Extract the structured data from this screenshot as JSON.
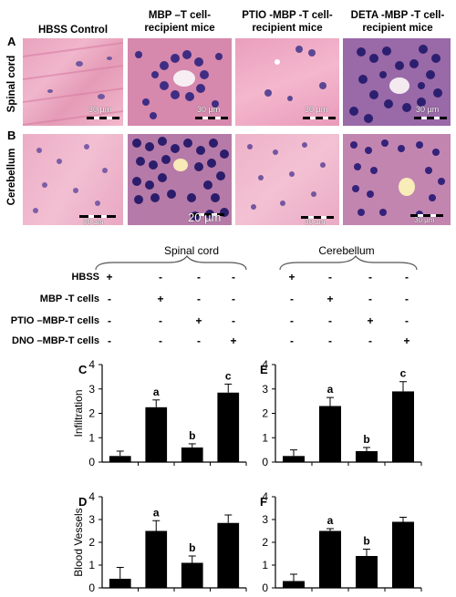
{
  "columns": [
    "HBSS Control",
    "MBP –T cell-\nrecipient mice",
    "PTIO -MBP -T cell-\nrecipient mice",
    "DETA -MBP -T cell-\nrecipient mice"
  ],
  "rows": [
    {
      "letter": "A",
      "label": "Spinal cord"
    },
    {
      "letter": "B",
      "label": "Cerebellum"
    }
  ],
  "scale_labels": {
    "A": [
      "30 µm",
      "30 µm",
      "30 µm",
      "30 µm"
    ],
    "B": [
      "30 µm",
      "20 µm",
      "30 µm",
      "30 µm"
    ]
  },
  "treatment_groups": [
    "Spinal cord",
    "Cerebellum"
  ],
  "treatments": [
    {
      "label": "HBSS",
      "values": [
        "+",
        "-",
        "-",
        "-"
      ]
    },
    {
      "label": "MBP -T cells",
      "values": [
        "-",
        "+",
        "-",
        "-"
      ]
    },
    {
      "label": "PTIO –MBP-T cells",
      "values": [
        "-",
        "-",
        "+",
        "-"
      ]
    },
    {
      "label": "DNO –MBP-T cells",
      "values": [
        "-",
        "-",
        "-",
        "+"
      ]
    }
  ],
  "colors": {
    "he_pink": "#e7a7bd",
    "he_nuclei": "#3b2f7a",
    "bar": "#000000"
  },
  "chart_data": [
    {
      "panel": "C",
      "type": "bar",
      "ylabel": "Infiltration",
      "ylim": [
        0,
        4
      ],
      "yticks": [
        0,
        1,
        2,
        3,
        4
      ],
      "values": [
        0.25,
        2.25,
        0.6,
        2.85
      ],
      "errors": [
        0.2,
        0.3,
        0.15,
        0.35
      ],
      "annotations": [
        "",
        "a",
        "b",
        "c"
      ]
    },
    {
      "panel": "E",
      "type": "bar",
      "ylabel": "",
      "ylim": [
        0,
        4
      ],
      "yticks": [
        0,
        1,
        2,
        3,
        4
      ],
      "values": [
        0.25,
        2.3,
        0.45,
        2.9
      ],
      "errors": [
        0.25,
        0.35,
        0.15,
        0.4
      ],
      "annotations": [
        "",
        "a",
        "b",
        "c"
      ]
    },
    {
      "panel": "D",
      "type": "bar",
      "ylabel": "Blood Vessels",
      "ylim": [
        0,
        4
      ],
      "yticks": [
        0,
        1,
        2,
        3,
        4
      ],
      "values": [
        0.4,
        2.5,
        1.1,
        2.85
      ],
      "errors": [
        0.5,
        0.45,
        0.3,
        0.35
      ],
      "annotations": [
        "",
        "a",
        "b",
        ""
      ]
    },
    {
      "panel": "F",
      "type": "bar",
      "ylabel": "",
      "ylim": [
        0,
        4
      ],
      "yticks": [
        0,
        1,
        2,
        3,
        4
      ],
      "values": [
        0.3,
        2.5,
        1.4,
        2.9
      ],
      "errors": [
        0.3,
        0.1,
        0.3,
        0.2
      ],
      "annotations": [
        "",
        "a",
        "b",
        ""
      ]
    }
  ]
}
